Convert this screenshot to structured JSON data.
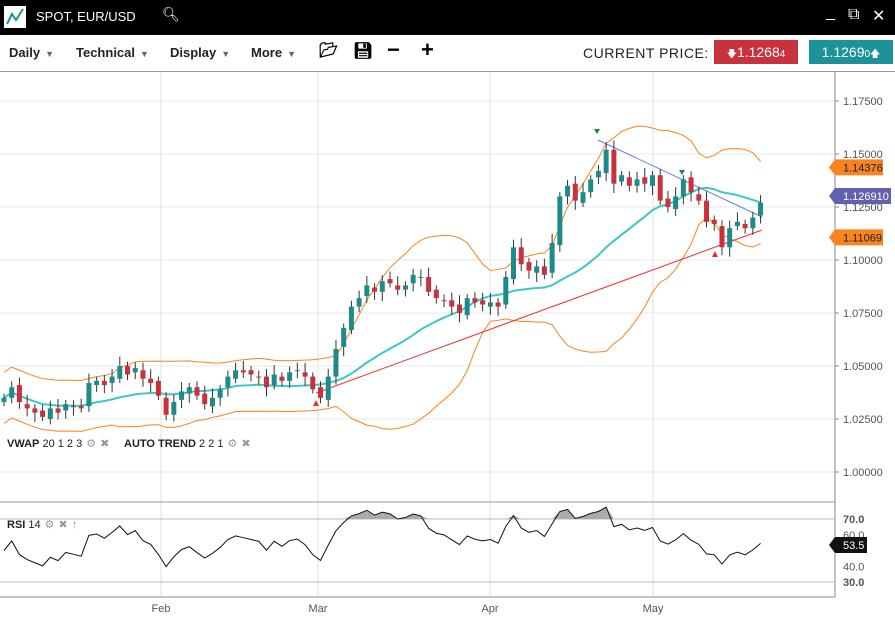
{
  "window": {
    "title": "SPOT, EUR/USD",
    "icons": [
      "chart-logo-icon",
      "search-icon",
      "minimize-icon",
      "popout-icon",
      "close-icon"
    ]
  },
  "toolbar": {
    "menus": [
      "Daily",
      "Technical",
      "Display",
      "More"
    ],
    "current_price_label": "CURRENT PRICE:",
    "bid": "1.1268",
    "bid_small": "4",
    "ask": "1.1269",
    "ask_small": "0",
    "bid_color": "#c9323d",
    "ask_color": "#1b9399"
  },
  "indicators": {
    "vwap_name": "VWAP",
    "vwap_params": "20 1 2 3",
    "trend_name": "AUTO TREND",
    "trend_params": "2 2 1",
    "rsi_name": "RSI",
    "rsi_params": "14"
  },
  "chart_data": {
    "type": "candlestick",
    "y_ticks": [
      "1.17500",
      "1.15000",
      "1.12500",
      "1.10000",
      "1.07500",
      "1.05000",
      "1.02500",
      "1.00000"
    ],
    "y_tick_values": [
      1.175,
      1.15,
      1.125,
      1.1,
      1.075,
      1.05,
      1.025,
      1.0
    ],
    "x_ticks": [
      "Feb",
      "Mar",
      "Apr",
      "May"
    ],
    "price_labels": {
      "upper": "1.14376",
      "last": "1.126910",
      "lower": "1.11069"
    },
    "label_colors": {
      "bands": "#f7841f",
      "last": "#6161ad",
      "ma": "#3cc8c3",
      "up": "#1f8a8a",
      "down": "#c8323d"
    },
    "close": [
      1.035,
      1.04,
      1.033,
      1.03,
      1.028,
      1.026,
      1.03,
      1.028,
      1.032,
      1.031,
      1.03,
      1.042,
      1.043,
      1.041,
      1.045,
      1.05,
      1.046,
      1.049,
      1.044,
      1.042,
      1.036,
      1.027,
      1.033,
      1.038,
      1.04,
      1.036,
      1.032,
      1.035,
      1.039,
      1.045,
      1.048,
      1.047,
      1.046,
      1.045,
      1.04,
      1.046,
      1.043,
      1.047,
      1.048,
      1.045,
      1.039,
      1.035,
      1.045,
      1.058,
      1.068,
      1.078,
      1.082,
      1.088,
      1.085,
      1.09,
      1.089,
      1.086,
      1.088,
      1.093,
      1.092,
      1.085,
      1.082,
      1.081,
      1.078,
      1.075,
      1.082,
      1.08,
      1.079,
      1.08,
      1.078,
      1.092,
      1.106,
      1.098,
      1.095,
      1.097,
      1.093,
      1.108,
      1.13,
      1.135,
      1.128,
      1.132,
      1.138,
      1.142,
      1.152,
      1.136,
      1.14,
      1.135,
      1.138,
      1.136,
      1.14,
      1.128,
      1.125,
      1.13,
      1.138,
      1.132,
      1.128,
      1.118,
      1.117,
      1.106,
      1.115,
      1.118,
      1.115,
      1.12,
      1.127
    ],
    "rsi": {
      "ticks": [
        "70.0",
        "60.0",
        "40.0",
        "30.0"
      ],
      "tick_values": [
        70,
        60,
        40,
        30
      ],
      "last": "53.5"
    }
  }
}
